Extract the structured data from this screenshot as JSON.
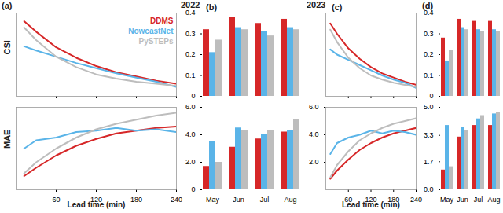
{
  "chart_data": [
    {
      "type": "line",
      "title": "(a)",
      "ylabel": "CSI",
      "tick_labels": false,
      "legend": "top-right",
      "x": [
        12,
        30,
        60,
        90,
        120,
        150,
        180,
        210,
        240
      ],
      "xlim": [
        0,
        240
      ],
      "xticks": [
        60,
        120,
        180,
        240
      ],
      "ylim": [
        0,
        0.8
      ],
      "yticks": [],
      "series": [
        {
          "name": "DDMS",
          "color": "#d62728",
          "values": [
            0.72,
            0.62,
            0.47,
            0.37,
            0.29,
            0.23,
            0.19,
            0.15,
            0.12
          ]
        },
        {
          "name": "NowcastNet",
          "color": "#5ab4e8",
          "values": [
            0.48,
            0.44,
            0.38,
            0.32,
            0.27,
            0.22,
            0.18,
            0.14,
            0.09
          ]
        },
        {
          "name": "PySTEPs",
          "color": "#bdbdbd",
          "values": [
            0.66,
            0.54,
            0.38,
            0.28,
            0.21,
            0.17,
            0.14,
            0.12,
            0.1
          ]
        }
      ]
    },
    {
      "type": "bar",
      "title": "(b)",
      "annotations": [
        "2022"
      ],
      "tick_labels": "y",
      "categories": [
        "May",
        "Jun",
        "Jul",
        "Aug"
      ],
      "ylim": [
        0,
        0.4
      ],
      "yticks": [
        0,
        0.1,
        0.2,
        0.3,
        0.4
      ],
      "series": [
        {
          "name": "DDMS",
          "color": "#d62728",
          "values": [
            0.32,
            0.38,
            0.35,
            0.37
          ]
        },
        {
          "name": "NowcastNet",
          "color": "#5ab4e8",
          "values": [
            0.21,
            0.33,
            0.31,
            0.33
          ]
        },
        {
          "name": "PySTEPs",
          "color": "#bdbdbd",
          "values": [
            0.27,
            0.32,
            0.29,
            0.32
          ]
        }
      ]
    },
    {
      "type": "line",
      "title": "(c)",
      "annotations": [
        "2023"
      ],
      "tick_labels": false,
      "x": [
        12,
        30,
        60,
        90,
        120,
        150,
        180,
        210,
        240
      ],
      "xlim": [
        0,
        240
      ],
      "xticks": [
        60,
        120,
        180,
        240
      ],
      "ylim": [
        0,
        0.8
      ],
      "yticks": [],
      "series": [
        {
          "name": "DDMS",
          "color": "#d62728",
          "values": [
            0.7,
            0.6,
            0.46,
            0.36,
            0.28,
            0.22,
            0.18,
            0.14,
            0.11
          ]
        },
        {
          "name": "NowcastNet",
          "color": "#5ab4e8",
          "values": [
            0.45,
            0.4,
            0.35,
            0.3,
            0.25,
            0.2,
            0.16,
            0.13,
            0.08
          ]
        },
        {
          "name": "PySTEPs",
          "color": "#bdbdbd",
          "values": [
            0.64,
            0.52,
            0.37,
            0.27,
            0.2,
            0.16,
            0.13,
            0.11,
            0.09
          ]
        }
      ]
    },
    {
      "type": "bar",
      "title": "(d)",
      "tick_labels": "y",
      "categories": [
        "May",
        "Jun",
        "Jul",
        "Aug"
      ],
      "ylim": [
        0,
        0.4
      ],
      "yticks": [
        0,
        0.1,
        0.2,
        0.3,
        0.4
      ],
      "series": [
        {
          "name": "DDMS",
          "color": "#d62728",
          "values": [
            0.28,
            0.37,
            0.36,
            0.36
          ]
        },
        {
          "name": "NowcastNet",
          "color": "#5ab4e8",
          "values": [
            0.17,
            0.33,
            0.32,
            0.32
          ]
        },
        {
          "name": "PySTEPs",
          "color": "#bdbdbd",
          "values": [
            0.22,
            0.32,
            0.31,
            0.31
          ]
        }
      ]
    },
    {
      "type": "line",
      "ylabel": "MAE",
      "xlabel": "Lead time (min)",
      "tick_labels": "x",
      "x": [
        12,
        30,
        60,
        90,
        120,
        150,
        180,
        210,
        240
      ],
      "xlim": [
        0,
        240
      ],
      "xticks": [
        60,
        120,
        180,
        240
      ],
      "ylim": [
        0,
        6
      ],
      "yticks": [],
      "series": [
        {
          "name": "DDMS",
          "color": "#d62728",
          "values": [
            1.0,
            1.6,
            2.5,
            3.2,
            3.7,
            4.1,
            4.3,
            4.5,
            4.6
          ]
        },
        {
          "name": "NowcastNet",
          "color": "#5ab4e8",
          "values": [
            3.0,
            3.6,
            3.8,
            4.2,
            4.3,
            4.5,
            4.3,
            4.4,
            4.2
          ]
        },
        {
          "name": "PySTEPs",
          "color": "#bdbdbd",
          "values": [
            1.2,
            2.0,
            3.0,
            3.8,
            4.4,
            4.8,
            5.1,
            5.4,
            5.6
          ]
        }
      ]
    },
    {
      "type": "bar",
      "categories": [
        "May",
        "Jun",
        "Jul",
        "Aug"
      ],
      "ylim": [
        0,
        6
      ],
      "yticks": [
        0,
        {
          "value": 2,
          "label": "2.0"
        },
        {
          "value": 4,
          "label": "4.0"
        },
        {
          "value": 6,
          "label": "6.0"
        }
      ],
      "series": [
        {
          "name": "DDMS",
          "color": "#d62728",
          "values": [
            1.7,
            3.1,
            3.7,
            4.2
          ]
        },
        {
          "name": "NowcastNet",
          "color": "#5ab4e8",
          "values": [
            3.5,
            4.5,
            4.0,
            4.3
          ]
        },
        {
          "name": "PySTEPs",
          "color": "#bdbdbd",
          "values": [
            2.0,
            4.3,
            4.3,
            5.1
          ]
        }
      ]
    },
    {
      "type": "line",
      "xlabel": "Lead time (min)",
      "x": [
        12,
        30,
        60,
        90,
        120,
        150,
        180,
        210,
        240
      ],
      "xlim": [
        0,
        240
      ],
      "xticks": [
        60,
        120,
        180,
        240
      ],
      "ylim": [
        0,
        6
      ],
      "yticks": [
        {
          "value": 2,
          "label": "2.0"
        },
        {
          "value": 4,
          "label": "4.0"
        },
        {
          "value": 6,
          "label": "6.0"
        }
      ],
      "series": [
        {
          "name": "DDMS",
          "color": "#d62728",
          "values": [
            0.8,
            1.4,
            2.2,
            2.9,
            3.4,
            3.8,
            4.1,
            4.3,
            4.5
          ]
        },
        {
          "name": "NowcastNet",
          "color": "#5ab4e8",
          "values": [
            2.6,
            3.4,
            3.8,
            4.0,
            4.3,
            4.1,
            4.3,
            4.2,
            4.0
          ]
        },
        {
          "name": "PySTEPs",
          "color": "#bdbdbd",
          "values": [
            0.9,
            1.8,
            2.8,
            3.6,
            4.1,
            4.5,
            4.8,
            5.0,
            5.2
          ]
        }
      ]
    },
    {
      "type": "bar",
      "categories": [
        "May",
        "Jun",
        "Jul",
        "Aug"
      ],
      "ylim": [
        0,
        5
      ],
      "yticks": [
        {
          "value": 0,
          "label": "0.0"
        },
        1.7,
        3.3,
        {
          "value": 5,
          "label": "5.0"
        }
      ],
      "series": [
        {
          "name": "DDMS",
          "color": "#d62728",
          "values": [
            1.2,
            3.2,
            3.9,
            3.9
          ]
        },
        {
          "name": "NowcastNet",
          "color": "#5ab4e8",
          "values": [
            3.9,
            3.8,
            4.3,
            4.6
          ]
        },
        {
          "name": "PySTEPs",
          "color": "#bdbdbd",
          "values": [
            1.4,
            3.6,
            4.5,
            4.7
          ]
        }
      ]
    }
  ]
}
